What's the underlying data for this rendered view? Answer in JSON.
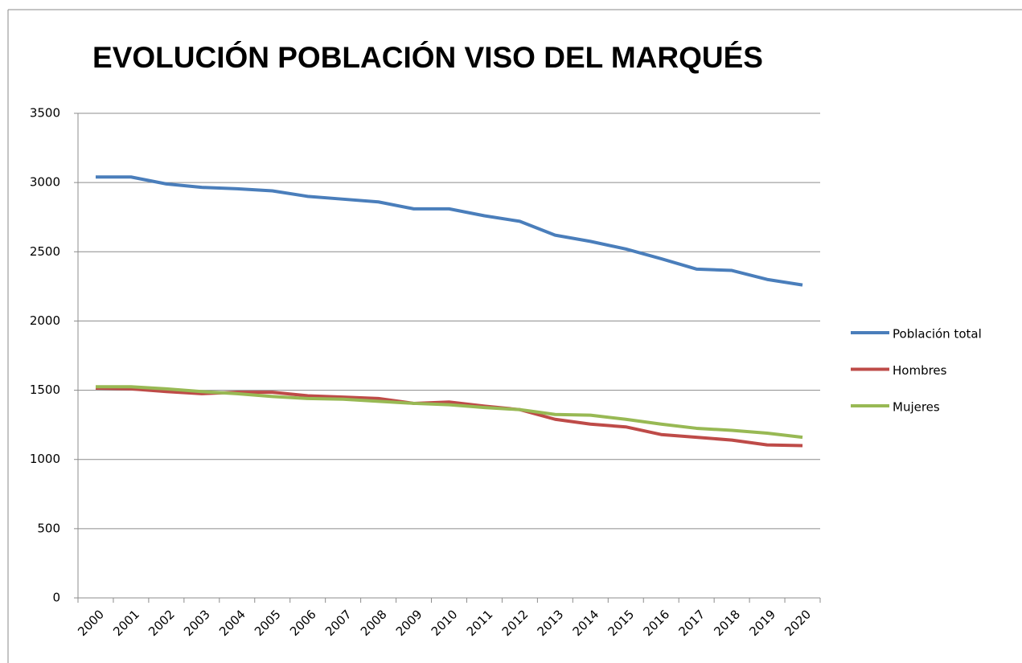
{
  "chart_data": {
    "type": "line",
    "title": "EVOLUCIÓN POBLACIÓN  VISO DEL MARQUÉS",
    "categories": [
      "2000",
      "2001",
      "2002",
      "2003",
      "2004",
      "2005",
      "2006",
      "2007",
      "2008",
      "2009",
      "2010",
      "2011",
      "2012",
      "2013",
      "2014",
      "2015",
      "2016",
      "2017",
      "2018",
      "2019",
      "2020"
    ],
    "series": [
      {
        "name": "Población total",
        "color": "#4a7ebb",
        "values": [
          3040,
          3040,
          2990,
          2965,
          2955,
          2940,
          2900,
          2880,
          2860,
          2810,
          2810,
          2760,
          2720,
          2620,
          2575,
          2520,
          2450,
          2375,
          2365,
          2300,
          2260
        ]
      },
      {
        "name": "Hombres",
        "color": "#be4b48",
        "values": [
          1515,
          1510,
          1490,
          1475,
          1485,
          1485,
          1460,
          1450,
          1440,
          1405,
          1415,
          1385,
          1360,
          1290,
          1255,
          1235,
          1180,
          1160,
          1140,
          1105,
          1100
        ]
      },
      {
        "name": "Mujeres",
        "color": "#98b954",
        "values": [
          1525,
          1525,
          1510,
          1490,
          1475,
          1455,
          1440,
          1435,
          1420,
          1405,
          1395,
          1375,
          1360,
          1325,
          1320,
          1290,
          1255,
          1225,
          1210,
          1190,
          1160
        ]
      }
    ],
    "ylim": [
      0,
      3500
    ],
    "yticks": [
      0,
      500,
      1000,
      1500,
      2000,
      2500,
      3000,
      3500
    ],
    "grid": true,
    "legend": "right"
  }
}
